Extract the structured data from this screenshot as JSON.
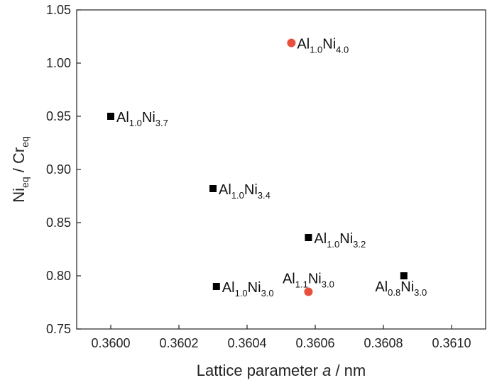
{
  "chart_data": {
    "type": "scatter",
    "xlabel": {
      "prefix": "Lattice parameter ",
      "italic": "a",
      "suffix": " / nm"
    },
    "ylabel": {
      "base1": "Ni",
      "sub1": "eq",
      "mid": " / Cr",
      "sub2": "eq"
    },
    "xlim": [
      0.3599,
      0.3611
    ],
    "ylim": [
      0.75,
      1.05
    ],
    "xticks": [
      "0.3600",
      "0.3602",
      "0.3604",
      "0.3606",
      "0.3608",
      "0.3610"
    ],
    "yticks": [
      "0.75",
      "0.80",
      "0.85",
      "0.90",
      "0.95",
      "1.00",
      "1.05"
    ],
    "grid": false,
    "colors": {
      "square": "#000000",
      "circle": "#e8503c"
    },
    "points": [
      {
        "x": 0.36,
        "y": 0.95,
        "marker": "square",
        "label": [
          [
            "Al",
            "1.0"
          ],
          [
            "Ni",
            "3.7"
          ]
        ],
        "label_pos": "right"
      },
      {
        "x": 0.3603,
        "y": 0.882,
        "marker": "square",
        "label": [
          [
            "Al",
            "1.0"
          ],
          [
            "Ni",
            "3.4"
          ]
        ],
        "label_pos": "right"
      },
      {
        "x": 0.36031,
        "y": 0.79,
        "marker": "square",
        "label": [
          [
            "Al",
            "1.0"
          ],
          [
            "Ni",
            "3.0"
          ]
        ],
        "label_pos": "right"
      },
      {
        "x": 0.36058,
        "y": 0.836,
        "marker": "square",
        "label": [
          [
            "Al",
            "1.0"
          ],
          [
            "Ni",
            "3.2"
          ]
        ],
        "label_pos": "right"
      },
      {
        "x": 0.36086,
        "y": 0.8,
        "marker": "square",
        "label": [
          [
            "Al",
            "0.8"
          ],
          [
            "Ni",
            "3.0"
          ]
        ],
        "label_pos": "below-left"
      },
      {
        "x": 0.36053,
        "y": 1.019,
        "marker": "circle",
        "label": [
          [
            "Al",
            "1.0"
          ],
          [
            "Ni",
            "4.0"
          ]
        ],
        "label_pos": "right"
      },
      {
        "x": 0.36058,
        "y": 0.785,
        "marker": "circle",
        "label": [
          [
            "Al",
            "1.1"
          ],
          [
            "Ni",
            "3.0"
          ]
        ],
        "label_pos": "above"
      }
    ]
  }
}
